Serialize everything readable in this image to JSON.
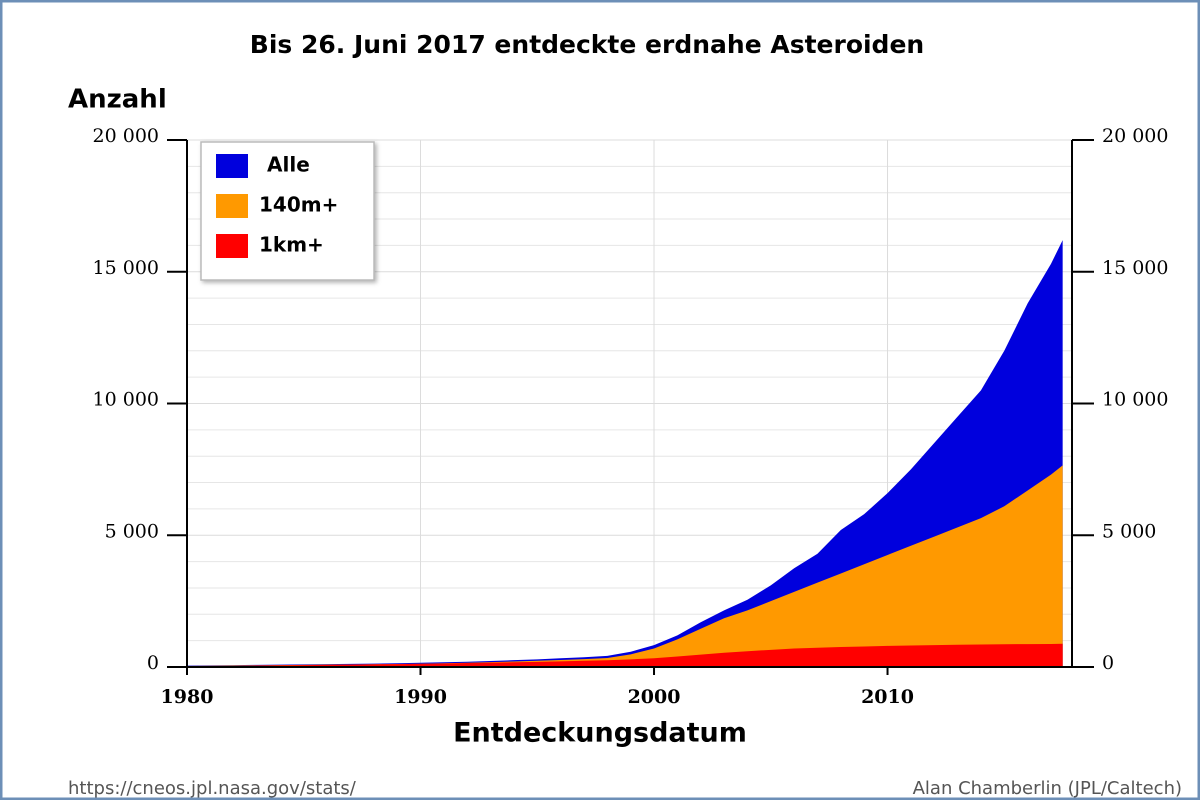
{
  "chart_data": {
    "type": "area",
    "title": "Bis 26. Juni 2017 entdeckte erdnahe Asteroiden",
    "y_label": "Anzahl",
    "x_label": "Entdeckungsdatum",
    "source": "https://cneos.jpl.nasa.gov/stats/",
    "credit": "Alan Chamberlin (JPL/Caltech)",
    "x": [
      1980,
      1981,
      1982,
      1983,
      1984,
      1985,
      1986,
      1987,
      1988,
      1989,
      1990,
      1991,
      1992,
      1993,
      1994,
      1995,
      1996,
      1997,
      1998,
      1999,
      2000,
      2001,
      2002,
      2003,
      2004,
      2005,
      2006,
      2007,
      2008,
      2009,
      2010,
      2011,
      2012,
      2013,
      2014,
      2015,
      2016,
      2017,
      2017.5
    ],
    "series": [
      {
        "name": "Alle",
        "color": "#0000dd",
        "values": [
          50,
          60,
          70,
          80,
          90,
          100,
          110,
          120,
          130,
          140,
          160,
          180,
          200,
          230,
          260,
          290,
          330,
          370,
          420,
          580,
          830,
          1200,
          1700,
          2150,
          2550,
          3100,
          3750,
          4300,
          5200,
          5800,
          6600,
          7500,
          8500,
          9500,
          10500,
          12000,
          13800,
          15300,
          16200
        ]
      },
      {
        "name": "140m+",
        "color": "#ff9900",
        "values": [
          40,
          48,
          56,
          64,
          72,
          80,
          88,
          96,
          104,
          112,
          125,
          140,
          160,
          185,
          210,
          235,
          265,
          300,
          340,
          480,
          700,
          1050,
          1450,
          1850,
          2150,
          2500,
          2850,
          3200,
          3550,
          3900,
          4250,
          4600,
          4950,
          5300,
          5650,
          6100,
          6700,
          7300,
          7650
        ]
      },
      {
        "name": "1km+",
        "color": "#ff0000",
        "values": [
          20,
          30,
          40,
          50,
          60,
          70,
          80,
          90,
          100,
          110,
          120,
          135,
          150,
          165,
          180,
          195,
          215,
          235,
          255,
          290,
          330,
          400,
          470,
          540,
          600,
          650,
          700,
          730,
          760,
          780,
          800,
          815,
          830,
          845,
          855,
          865,
          870,
          875,
          880
        ]
      }
    ],
    "xlim": [
      1980,
      2017.9
    ],
    "xticks": [
      1980,
      1990,
      2000,
      2010
    ],
    "ylim": [
      0,
      20000
    ],
    "yticks": [
      {
        "value": 0,
        "label": "0"
      },
      {
        "value": 5000,
        "label": "5 000"
      },
      {
        "value": 10000,
        "label": "10 000"
      },
      {
        "value": 15000,
        "label": "15 000"
      },
      {
        "value": 20000,
        "label": "20 000"
      }
    ],
    "y_minor_ticks": [
      1000,
      2000,
      3000,
      4000,
      6000,
      7000,
      8000,
      9000,
      11000,
      12000,
      13000,
      14000,
      16000,
      17000,
      18000,
      19000
    ],
    "grid": true,
    "legend": "upper left"
  }
}
